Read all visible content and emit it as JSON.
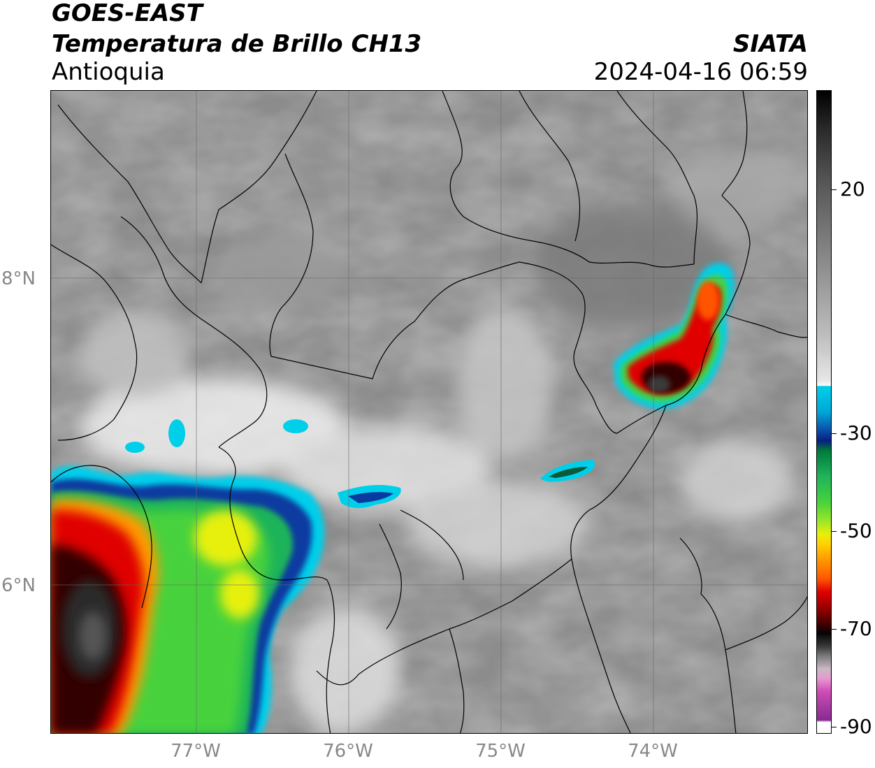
{
  "header": {
    "title_line1": "GOES-EAST",
    "title_line2": "Temperatura de Brillo CH13",
    "region": "Antioquia",
    "brand": "SIATA",
    "datetime": "2024-04-16 06:59"
  },
  "map": {
    "latitude_labels": [
      "8°N",
      "6°N"
    ],
    "longitude_labels": [
      "77°W",
      "76°W",
      "75°W",
      "74°W"
    ]
  },
  "colorbar": {
    "labels": [
      "20",
      "-30",
      "-50",
      "-70",
      "-90"
    ],
    "colors": {
      "warm": "#555555",
      "neutral": "#e6e6e6",
      "cyan": "#00cfea",
      "blue": "#0a1f80",
      "green": "#46d23c",
      "yellow": "#e7f00a",
      "orange": "#ff9900",
      "red": "#e00000",
      "dark_red": "#300000",
      "magenta": "#d04cb8",
      "purple": "#8a2a95"
    }
  }
}
